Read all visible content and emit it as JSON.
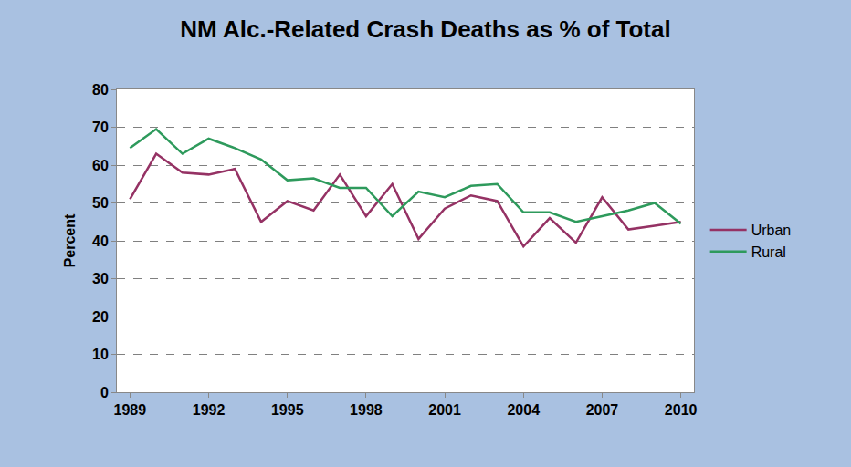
{
  "chart_data": {
    "type": "line",
    "title": "NM Alc.-Related Crash Deaths as % of Total",
    "y_label": "Percent",
    "x": [
      1989,
      1990,
      1991,
      1992,
      1993,
      1994,
      1995,
      1996,
      1997,
      1998,
      1999,
      2000,
      2001,
      2002,
      2003,
      2004,
      2005,
      2006,
      2007,
      2008,
      2009,
      2010
    ],
    "series": [
      {
        "name": "Urban",
        "color": "#953264",
        "values": [
          51,
          63,
          58,
          57.5,
          59,
          45,
          50.5,
          48,
          57.5,
          46.5,
          55,
          40.5,
          48.5,
          52,
          50.5,
          38.5,
          46,
          39.5,
          51.5,
          43,
          44,
          45
        ]
      },
      {
        "name": "Rural",
        "color": "#2e9a5c",
        "values": [
          64.5,
          69.5,
          63,
          67,
          64.5,
          61.5,
          56,
          56.5,
          54,
          54,
          46.5,
          53,
          51.5,
          54.5,
          55,
          47.5,
          47.5,
          45,
          46.5,
          48,
          50,
          44.5
        ]
      }
    ],
    "xlim": [
      1988.5,
      2010.5
    ],
    "xticks": [
      1989,
      1992,
      1995,
      1998,
      2001,
      2004,
      2007,
      2010
    ],
    "ylim": [
      0,
      80
    ],
    "yticks": [
      0,
      10,
      20,
      30,
      40,
      50,
      60,
      70,
      80
    ],
    "grid": true,
    "legend": "right"
  }
}
